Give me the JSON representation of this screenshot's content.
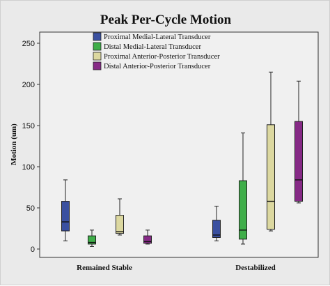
{
  "chart_data": {
    "type": "boxplot",
    "title": "Peak Per-Cycle Motion",
    "ylabel": "Motion (um)",
    "xlabel": "",
    "ylim": [
      0,
      250
    ],
    "yticks": [
      0,
      50,
      100,
      150,
      200,
      250
    ],
    "categories": [
      "Remained Stable",
      "Destabilized"
    ],
    "legend_position": "top",
    "grid": false,
    "series": [
      {
        "name": "Proximal Medial-Lateral Transducer",
        "color": "#3a50a0",
        "boxes": [
          {
            "min": 10,
            "q1": 22,
            "median": 33,
            "q3": 58,
            "max": 84
          },
          {
            "min": 10,
            "q1": 14,
            "median": 17,
            "q3": 35,
            "max": 52
          }
        ]
      },
      {
        "name": "Distal Medial-Lateral Transducer",
        "color": "#3fae49",
        "boxes": [
          {
            "min": 3,
            "q1": 6,
            "median": 8,
            "q3": 16,
            "max": 23
          },
          {
            "min": 6,
            "q1": 12,
            "median": 23,
            "q3": 83,
            "max": 141
          }
        ]
      },
      {
        "name": "Proximal Anterior-Posterior Transducer",
        "color": "#dcd8a0",
        "boxes": [
          {
            "min": 17,
            "q1": 19,
            "median": 21,
            "q3": 41,
            "max": 61
          },
          {
            "min": 22,
            "q1": 24,
            "median": 58,
            "q3": 151,
            "max": 215
          }
        ]
      },
      {
        "name": "Distal Anterior-Posterior Transducer",
        "color": "#862a86",
        "boxes": [
          {
            "min": 6,
            "q1": 7,
            "median": 9,
            "q3": 16,
            "max": 23
          },
          {
            "min": 56,
            "q1": 58,
            "median": 84,
            "q3": 155,
            "max": 204
          }
        ]
      }
    ]
  }
}
